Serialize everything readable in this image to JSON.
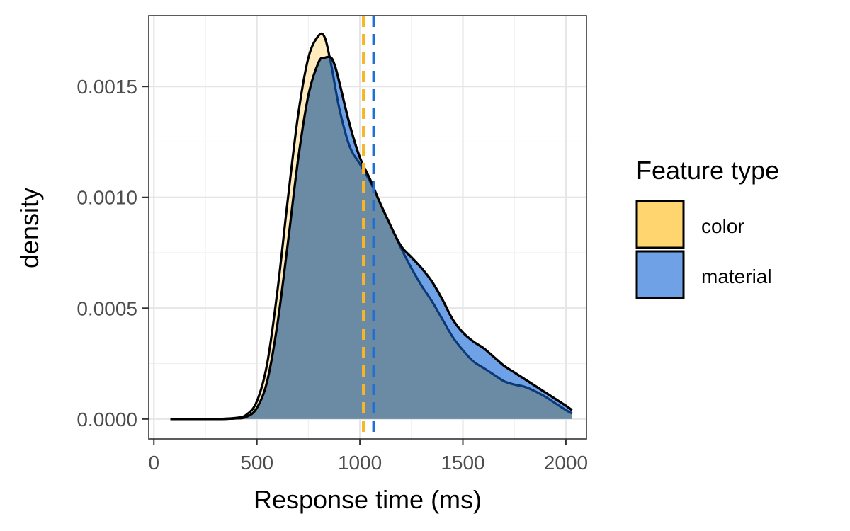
{
  "chart_data": {
    "type": "area",
    "title": "",
    "xlabel": "Response time (ms)",
    "ylabel": "density",
    "xlim": [
      -25,
      2100
    ],
    "ylim": [
      -9e-05,
      0.00182
    ],
    "x_ticks": [
      0,
      500,
      1000,
      1500,
      2000
    ],
    "x_tick_labels": [
      "0",
      "500",
      "1000",
      "1500",
      "2000"
    ],
    "y_ticks": [
      0,
      0.0005,
      0.001,
      0.0015
    ],
    "y_tick_labels": [
      "0.0000",
      "0.0005",
      "0.0010",
      "0.0015"
    ],
    "grid": true,
    "legend": {
      "title": "Feature type",
      "position": "right"
    },
    "series": [
      {
        "name": "color",
        "fill": "#FFD56F",
        "outline": "#000000",
        "mean": 1017,
        "mean_line_color": "#F7B52A",
        "x": [
          80,
          300,
          400,
          450,
          500,
          550,
          600,
          650,
          700,
          750,
          800,
          830,
          860,
          900,
          950,
          1000,
          1050,
          1100,
          1150,
          1200,
          1250,
          1300,
          1350,
          1400,
          1450,
          1500,
          1550,
          1600,
          1650,
          1700,
          1750,
          1800,
          1850,
          1900,
          1950,
          2000,
          2030
        ],
        "values": [
          0,
          0,
          5e-06,
          2e-05,
          8e-05,
          0.00025,
          0.00058,
          0.00099,
          0.00137,
          0.00163,
          0.00173,
          0.00172,
          0.0016,
          0.0014,
          0.00123,
          0.00115,
          0.00107,
          0.00097,
          0.00087,
          0.00077,
          0.00068,
          0.0006,
          0.00053,
          0.00045,
          0.00037,
          0.00031,
          0.00026,
          0.00023,
          0.0002,
          0.00017,
          0.000155,
          0.000145,
          0.000125,
          0.0001,
          7e-05,
          4e-05,
          2.5e-05
        ]
      },
      {
        "name": "material",
        "fill": "#6EA1E6",
        "outline": "#000000",
        "mean": 1067,
        "mean_line_color": "#1F6FD6",
        "x": [
          80,
          300,
          400,
          450,
          500,
          550,
          600,
          650,
          700,
          750,
          800,
          830,
          860,
          880,
          900,
          950,
          1000,
          1050,
          1100,
          1150,
          1200,
          1250,
          1300,
          1350,
          1400,
          1450,
          1500,
          1550,
          1600,
          1650,
          1700,
          1750,
          1800,
          1850,
          1900,
          1950,
          2000,
          2030
        ],
        "values": [
          0,
          0,
          3e-06,
          1e-05,
          5e-05,
          0.00017,
          0.00043,
          0.00079,
          0.00117,
          0.00146,
          0.00161,
          0.00163,
          0.00163,
          0.00159,
          0.00152,
          0.00133,
          0.00118,
          0.00108,
          0.00097,
          0.00087,
          0.00078,
          0.00073,
          0.00068,
          0.00062,
          0.00054,
          0.00045,
          0.00039,
          0.00035,
          0.00032,
          0.00028,
          0.00024,
          0.00021,
          0.00018,
          0.00015,
          0.00012,
          9e-05,
          6e-05,
          4e-05
        ]
      }
    ]
  }
}
